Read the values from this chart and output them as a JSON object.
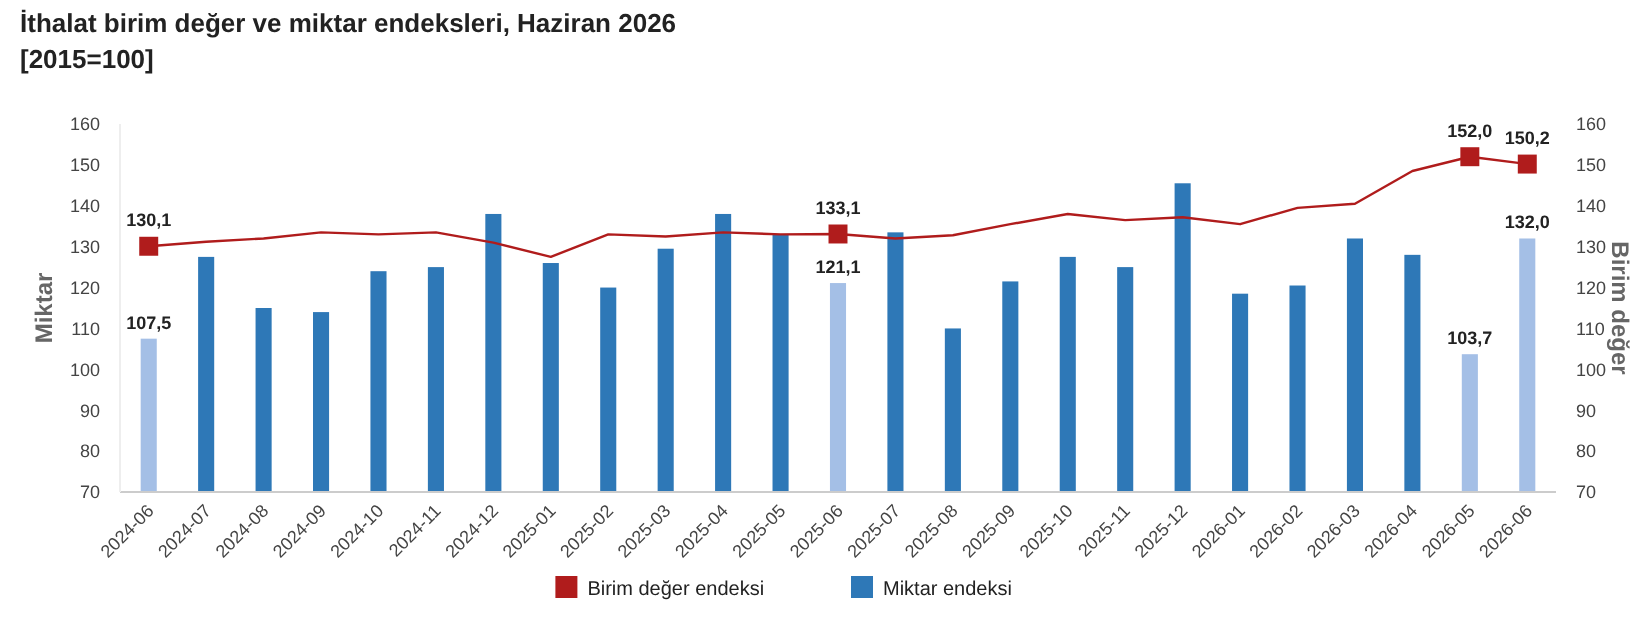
{
  "chart_data": {
    "type": "bar",
    "title": "İthalat birim değer ve miktar endeksleri, Haziran 2026",
    "subtitle": "[2015=100]",
    "ylabel": "Miktar",
    "y2label": "Birim değer",
    "categories": [
      "2024-06",
      "2024-07",
      "2024-08",
      "2024-09",
      "2024-10",
      "2024-11",
      "2024-12",
      "2025-01",
      "2025-02",
      "2025-03",
      "2025-04",
      "2025-05",
      "2025-06",
      "2025-07",
      "2025-08",
      "2025-09",
      "2025-10",
      "2025-11",
      "2025-12",
      "2026-01",
      "2026-02",
      "2026-03",
      "2026-04",
      "2026-05",
      "2026-06"
    ],
    "ylim": [
      70,
      160
    ],
    "yticks": [
      70,
      80,
      90,
      100,
      110,
      120,
      130,
      140,
      150,
      160
    ],
    "y2lim": [
      70,
      160
    ],
    "y2ticks": [
      70,
      80,
      90,
      100,
      110,
      120,
      130,
      140,
      150,
      160
    ],
    "series": [
      {
        "name": "Birim değer endeksi",
        "type": "line",
        "axis": "y2",
        "color": "#b01c1c",
        "values": [
          130.1,
          131.2,
          132,
          133.5,
          133,
          133.5,
          131,
          127.5,
          133,
          132.5,
          133.5,
          133,
          133.1,
          132,
          132.8,
          135.5,
          138,
          136.5,
          137.2,
          135.5,
          139.5,
          140.5,
          148.5,
          152.0,
          150.2
        ]
      },
      {
        "type": "scatter",
        "axis": "y2",
        "color": "#b01c1c",
        "marker": "square",
        "values": [
          130.1,
          null,
          null,
          null,
          null,
          null,
          null,
          null,
          null,
          null,
          null,
          null,
          133.1,
          null,
          null,
          null,
          null,
          null,
          null,
          null,
          null,
          null,
          null,
          152.0,
          150.2
        ],
        "value_labels": [
          "130,1",
          null,
          null,
          null,
          null,
          null,
          null,
          null,
          null,
          null,
          null,
          null,
          "133,1",
          null,
          null,
          null,
          null,
          null,
          null,
          null,
          null,
          null,
          null,
          "152,0",
          "150,2"
        ]
      },
      {
        "name": "Miktar endeksi",
        "color": "#2e78b7",
        "colors": [
          "#a4bfe6",
          "#2e78b7",
          "#2e78b7",
          "#2e78b7",
          "#2e78b7",
          "#2e78b7",
          "#2e78b7",
          "#2e78b7",
          "#2e78b7",
          "#2e78b7",
          "#2e78b7",
          "#2e78b7",
          "#a4bfe6",
          "#2e78b7",
          "#2e78b7",
          "#2e78b7",
          "#2e78b7",
          "#2e78b7",
          "#2e78b7",
          "#2e78b7",
          "#2e78b7",
          "#2e78b7",
          "#2e78b7",
          "#a4bfe6",
          "#a4bfe6"
        ],
        "values": [
          107.5,
          127.5,
          115,
          114,
          124,
          125,
          138,
          126,
          120,
          129.5,
          138,
          133,
          121.1,
          133.5,
          110,
          121.5,
          127.5,
          125,
          145.5,
          118.5,
          120.5,
          132,
          128,
          103.7,
          132.0
        ],
        "value_labels": [
          "107,5",
          null,
          null,
          null,
          null,
          null,
          null,
          null,
          null,
          null,
          null,
          null,
          "121,1",
          null,
          null,
          null,
          null,
          null,
          null,
          null,
          null,
          null,
          null,
          "103,7",
          "132,0"
        ]
      }
    ],
    "legend": "bottom",
    "grid": false
  }
}
